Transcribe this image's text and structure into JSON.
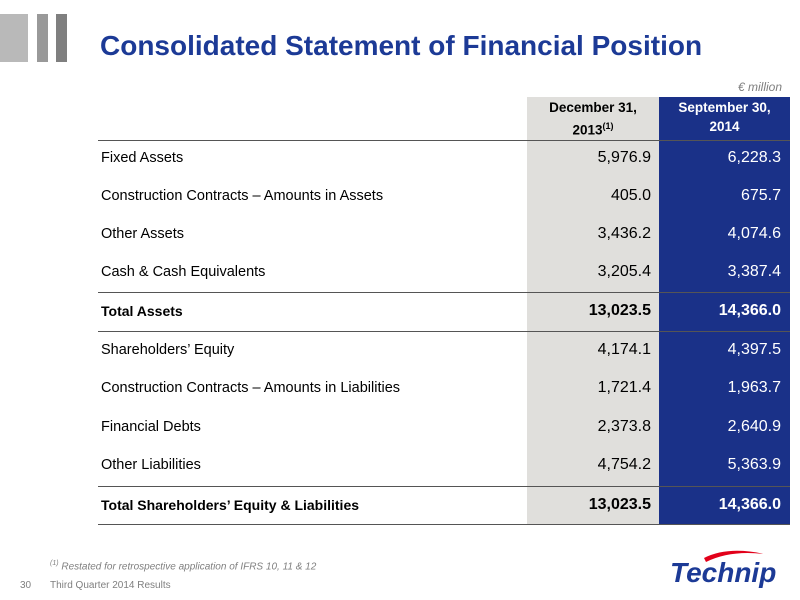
{
  "title": "Consolidated Statement of Financial Position",
  "unit": "€ million",
  "columns": {
    "a_line1": "December 31,",
    "a_line2": "2013",
    "a_sup": "(1)",
    "b_line1": "September 30,",
    "b_line2": "2014"
  },
  "rows": [
    {
      "label": "Fixed Assets",
      "a": "5,976.9",
      "b": "6,228.3"
    },
    {
      "label": "Construction Contracts – Amounts in Assets",
      "a": "405.0",
      "b": "675.7"
    },
    {
      "label": "Other Assets",
      "a": "3,436.2",
      "b": "4,074.6"
    },
    {
      "label": "Cash & Cash Equivalents",
      "a": "3,205.4",
      "b": "3,387.4"
    },
    {
      "label": "Total Assets",
      "a": "13,023.5",
      "b": "14,366.0"
    },
    {
      "label": "Shareholders’ Equity",
      "a": "4,174.1",
      "b": "4,397.5"
    },
    {
      "label": "Construction Contracts – Amounts in Liabilities",
      "a": "1,721.4",
      "b": "1,963.7"
    },
    {
      "label": "Financial Debts",
      "a": "2,373.8",
      "b": "2,640.9"
    },
    {
      "label": "Other Liabilities",
      "a": "4,754.2",
      "b": "5,363.9"
    },
    {
      "label": "Total Shareholders’ Equity & Liabilities",
      "a": "13,023.5",
      "b": "14,366.0"
    }
  ],
  "footnote": {
    "marker": "(1)",
    "text": "Restated for retrospective application of IFRS 10, 11 & 12"
  },
  "page_number": "30",
  "presentation": "Third Quarter 2014 Results",
  "logo": {
    "text": "Technip",
    "colors": {
      "primary": "#1c3a96",
      "accent": "#e2001a"
    }
  },
  "colors": {
    "title": "#1c3a96",
    "column_b_bg": "#1a3188",
    "column_a_bg": "#e0dfdc"
  }
}
